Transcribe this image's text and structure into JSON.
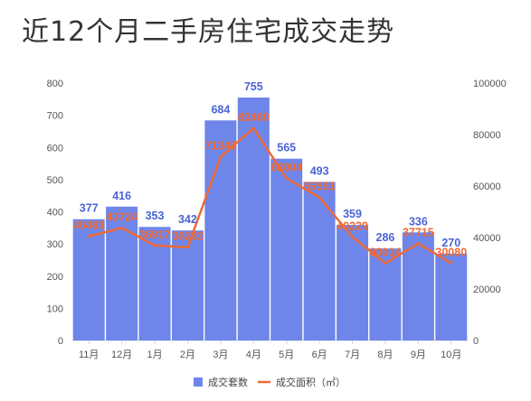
{
  "title": "近12个月二手房住宅成交走势",
  "chart_data": {
    "type": "bar",
    "categories": [
      "11月",
      "12月",
      "1月",
      "2月",
      "3月",
      "4月",
      "5月",
      "6月",
      "7月",
      "8月",
      "9月",
      "10月"
    ],
    "series": [
      {
        "name": "成交套数",
        "type": "bar",
        "axis": "left",
        "color": "#6e85ea",
        "label_color": "#4a64d6",
        "values": [
          377,
          416,
          353,
          342,
          684,
          755,
          565,
          493,
          359,
          286,
          336,
          270
        ],
        "labels": [
          "377",
          "416",
          "353",
          "342",
          "684",
          "755",
          "565",
          "493",
          "359",
          "286",
          "336",
          "270"
        ]
      },
      {
        "name": "成交面积（㎡）",
        "type": "line",
        "axis": "right",
        "color": "#ef6a35",
        "values": [
          40483,
          43724,
          36917,
          36232,
          71348,
          82480,
          63004,
          55551,
          40229,
          30014,
          37715,
          30080
        ],
        "labels": [
          "40483",
          "43724",
          "36917",
          "36232",
          "71348",
          "82480",
          "63004",
          "55551",
          "40229",
          "30014",
          "37715",
          "30080"
        ]
      }
    ],
    "y_left": {
      "min": 0,
      "max": 800,
      "ticks": [
        "0",
        "100",
        "200",
        "300",
        "400",
        "500",
        "600",
        "700",
        "800"
      ]
    },
    "y_right": {
      "min": 0,
      "max": 100000,
      "ticks": [
        "0",
        "20000",
        "40000",
        "60000",
        "80000",
        "100000"
      ]
    },
    "grid": false,
    "legend_position": "bottom"
  }
}
